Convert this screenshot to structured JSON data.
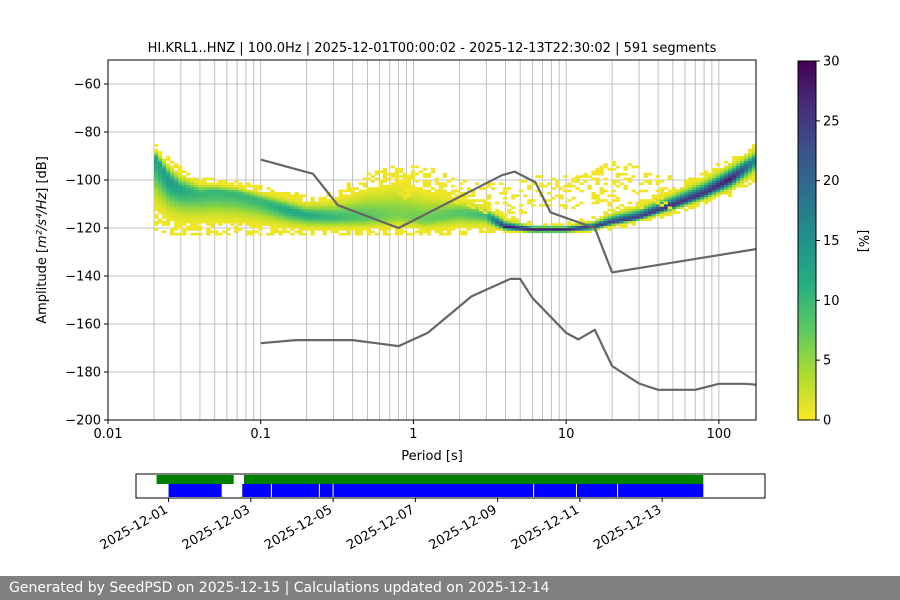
{
  "chart_data": [
    {
      "type": "heatmap",
      "title": "HI.KRL1..HNZ | 100.0Hz | 2025-12-01T00:00:02 - 2025-12-13T22:30:02 | 591 segments",
      "xlabel": "Period [s]",
      "ylabel_prefix": "Amplitude [",
      "ylabel_math": "m²/s⁴/Hz",
      "ylabel_suffix": "] [dB]",
      "x_scale": "log",
      "xlim": [
        0.01,
        175
      ],
      "ylim": [
        -200,
        -50
      ],
      "x_ticks": [
        0.01,
        0.1,
        1,
        10,
        100
      ],
      "x_tick_labels": [
        "0.01",
        "0.1",
        "1",
        "10",
        "100"
      ],
      "y_ticks": [
        -200,
        -180,
        -160,
        -140,
        -120,
        -100,
        -80,
        -60
      ],
      "y_tick_labels": [
        "−200",
        "−180",
        "−160",
        "−140",
        "−120",
        "−100",
        "−80",
        "−60"
      ],
      "grid": "vertical-log-minor",
      "colorbar": {
        "label": "[%]",
        "range": [
          0,
          30
        ],
        "ticks": [
          0,
          5,
          10,
          15,
          20,
          25,
          30
        ],
        "tick_labels": [
          "0",
          "5",
          "10",
          "15",
          "20",
          "25",
          "30"
        ],
        "colormap": "viridis-reversed"
      },
      "density_mode": {
        "period": [
          0.02,
          0.025,
          0.03,
          0.04,
          0.05,
          0.07,
          0.1,
          0.15,
          0.2,
          0.3,
          0.5,
          0.8,
          1.2,
          2,
          3,
          4,
          6,
          10,
          15,
          20,
          30,
          50,
          80,
          120,
          175
        ],
        "db": [
          -90,
          -100,
          -104,
          -106,
          -105,
          -106,
          -109,
          -113,
          -115,
          -116,
          -116,
          -115,
          -117,
          -114,
          -115,
          -120,
          -121,
          -121,
          -120,
          -118,
          -116,
          -111,
          -106,
          -100,
          -92
        ],
        "lower_db": [
          -120,
          -122,
          -123,
          -123,
          -123,
          -123,
          -123,
          -123,
          -123,
          -123,
          -123,
          -123,
          -123,
          -123,
          -122,
          -122,
          -122,
          -122,
          -121,
          -120,
          -118,
          -114,
          -110,
          -106,
          -100
        ],
        "upper_db": [
          -86,
          -92,
          -96,
          -100,
          -101,
          -102,
          -104,
          -106,
          -108,
          -106,
          -99,
          -95,
          -100,
          -106,
          -110,
          -116,
          -119,
          -119,
          -117,
          -113,
          -110,
          -104,
          -98,
          -92,
          -86
        ],
        "peak_percent": [
          12,
          14,
          12,
          10,
          10,
          10,
          10,
          12,
          12,
          10,
          8,
          6,
          7,
          8,
          10,
          28,
          28,
          28,
          26,
          24,
          25,
          26,
          25,
          28,
          15
        ],
        "scatter_band": {
          "period": [
            0.8,
            1.2,
            3,
            5,
            8,
            12,
            20,
            30,
            50
          ],
          "upper_db": [
            -95,
            -96,
            -103,
            -101,
            -99,
            -100,
            -93,
            -96,
            -100
          ],
          "lower_db": [
            -108,
            -104,
            -114,
            -114,
            -112,
            -112,
            -110,
            -112,
            -112
          ]
        }
      },
      "series": [
        {
          "color": "#666666",
          "x": [
            0.1,
            0.22,
            0.32,
            0.8,
            3.8,
            4.6,
            6.3,
            7.9,
            15.4,
            20,
            175
          ],
          "y": [
            -91.5,
            -97.4,
            -110.5,
            -120,
            -98,
            -96.5,
            -101,
            -113.5,
            -120,
            -138.5,
            -128.8
          ]
        },
        {
          "color": "#666666",
          "x": [
            0.1,
            0.17,
            0.4,
            0.8,
            1.24,
            2.4,
            4.3,
            5,
            6,
            10,
            12,
            15.4,
            20,
            30,
            40,
            70,
            100,
            150,
            175
          ],
          "y": [
            -168,
            -166.7,
            -166.7,
            -169.2,
            -163.7,
            -148.5,
            -141.2,
            -141.2,
            -149.1,
            -163.7,
            -166.4,
            -162.4,
            -177.5,
            -184.8,
            -187.4,
            -187.4,
            -184.9,
            -184.9,
            -185.3
          ]
        }
      ]
    },
    {
      "type": "timeline",
      "x_ticks": [
        "2025-12-01",
        "2025-12-03",
        "2025-12-05",
        "2025-12-07",
        "2025-12-09",
        "2025-12-11",
        "2025-12-13"
      ],
      "xlim": [
        "2025-11-30T05:00",
        "2025-12-15T12:00"
      ],
      "green_segments": [
        [
          "2025-11-30T17:00",
          "2025-12-02T14:00"
        ],
        [
          "2025-12-02T20:00",
          "2025-12-14T00:00"
        ]
      ],
      "blue_segments": [
        [
          "2025-12-01T00:00",
          "2025-12-02T07:00"
        ],
        [
          "2025-12-02T19:00",
          "2025-12-14T00:00"
        ]
      ],
      "blue_gaps": [
        "2025-12-03T12:00",
        "2025-12-04T16:00",
        "2025-12-05T00:00",
        "2025-12-09T21:00",
        "2025-12-10T22:00",
        "2025-12-11T22:00"
      ]
    }
  ],
  "footer": {
    "text": "Generated by SeedPSD on 2025-12-15 | Calculations updated on 2025-12-14"
  }
}
